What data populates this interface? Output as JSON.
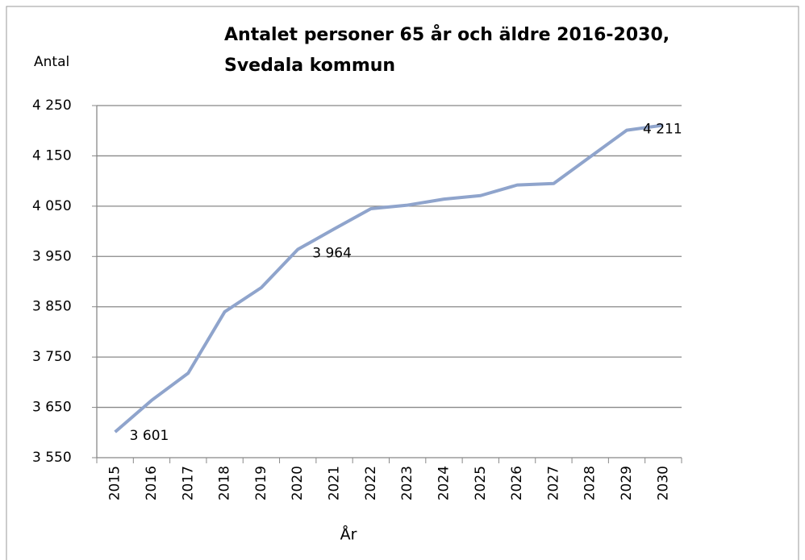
{
  "chart_data": {
    "type": "line",
    "title": [
      "Antalet personer 65 år och äldre 2016-2030,",
      "Svedala kommun"
    ],
    "y_label": "Antal",
    "x_label": "År",
    "categories": [
      "2015",
      "2016",
      "2017",
      "2018",
      "2019",
      "2020",
      "2021",
      "2022",
      "2023",
      "2024",
      "2025",
      "2026",
      "2027",
      "2028",
      "2029",
      "2030"
    ],
    "series": [
      {
        "color": "#8fa4cc",
        "values": [
          3601,
          3664,
          3718,
          3840,
          3888,
          3964,
          4005,
          4045,
          4052,
          4064,
          4071,
          4092,
          4095,
          4148,
          4201,
          4211
        ],
        "value_labels": [
          "3 601",
          null,
          null,
          null,
          null,
          "3 964",
          null,
          null,
          null,
          null,
          null,
          null,
          null,
          null,
          null,
          "4 211"
        ]
      }
    ],
    "ylim": [
      3550,
      4250
    ],
    "yticks": [
      {
        "value": 3550,
        "label": "3 550"
      },
      {
        "value": 3650,
        "label": "3 650"
      },
      {
        "value": 3750,
        "label": "3 750"
      },
      {
        "value": 3850,
        "label": "3 850"
      },
      {
        "value": 3950,
        "label": "3 950"
      },
      {
        "value": 4050,
        "label": "4 050"
      },
      {
        "value": 4150,
        "label": "4 150"
      },
      {
        "value": 4250,
        "label": "4 250"
      }
    ],
    "grid": true
  }
}
